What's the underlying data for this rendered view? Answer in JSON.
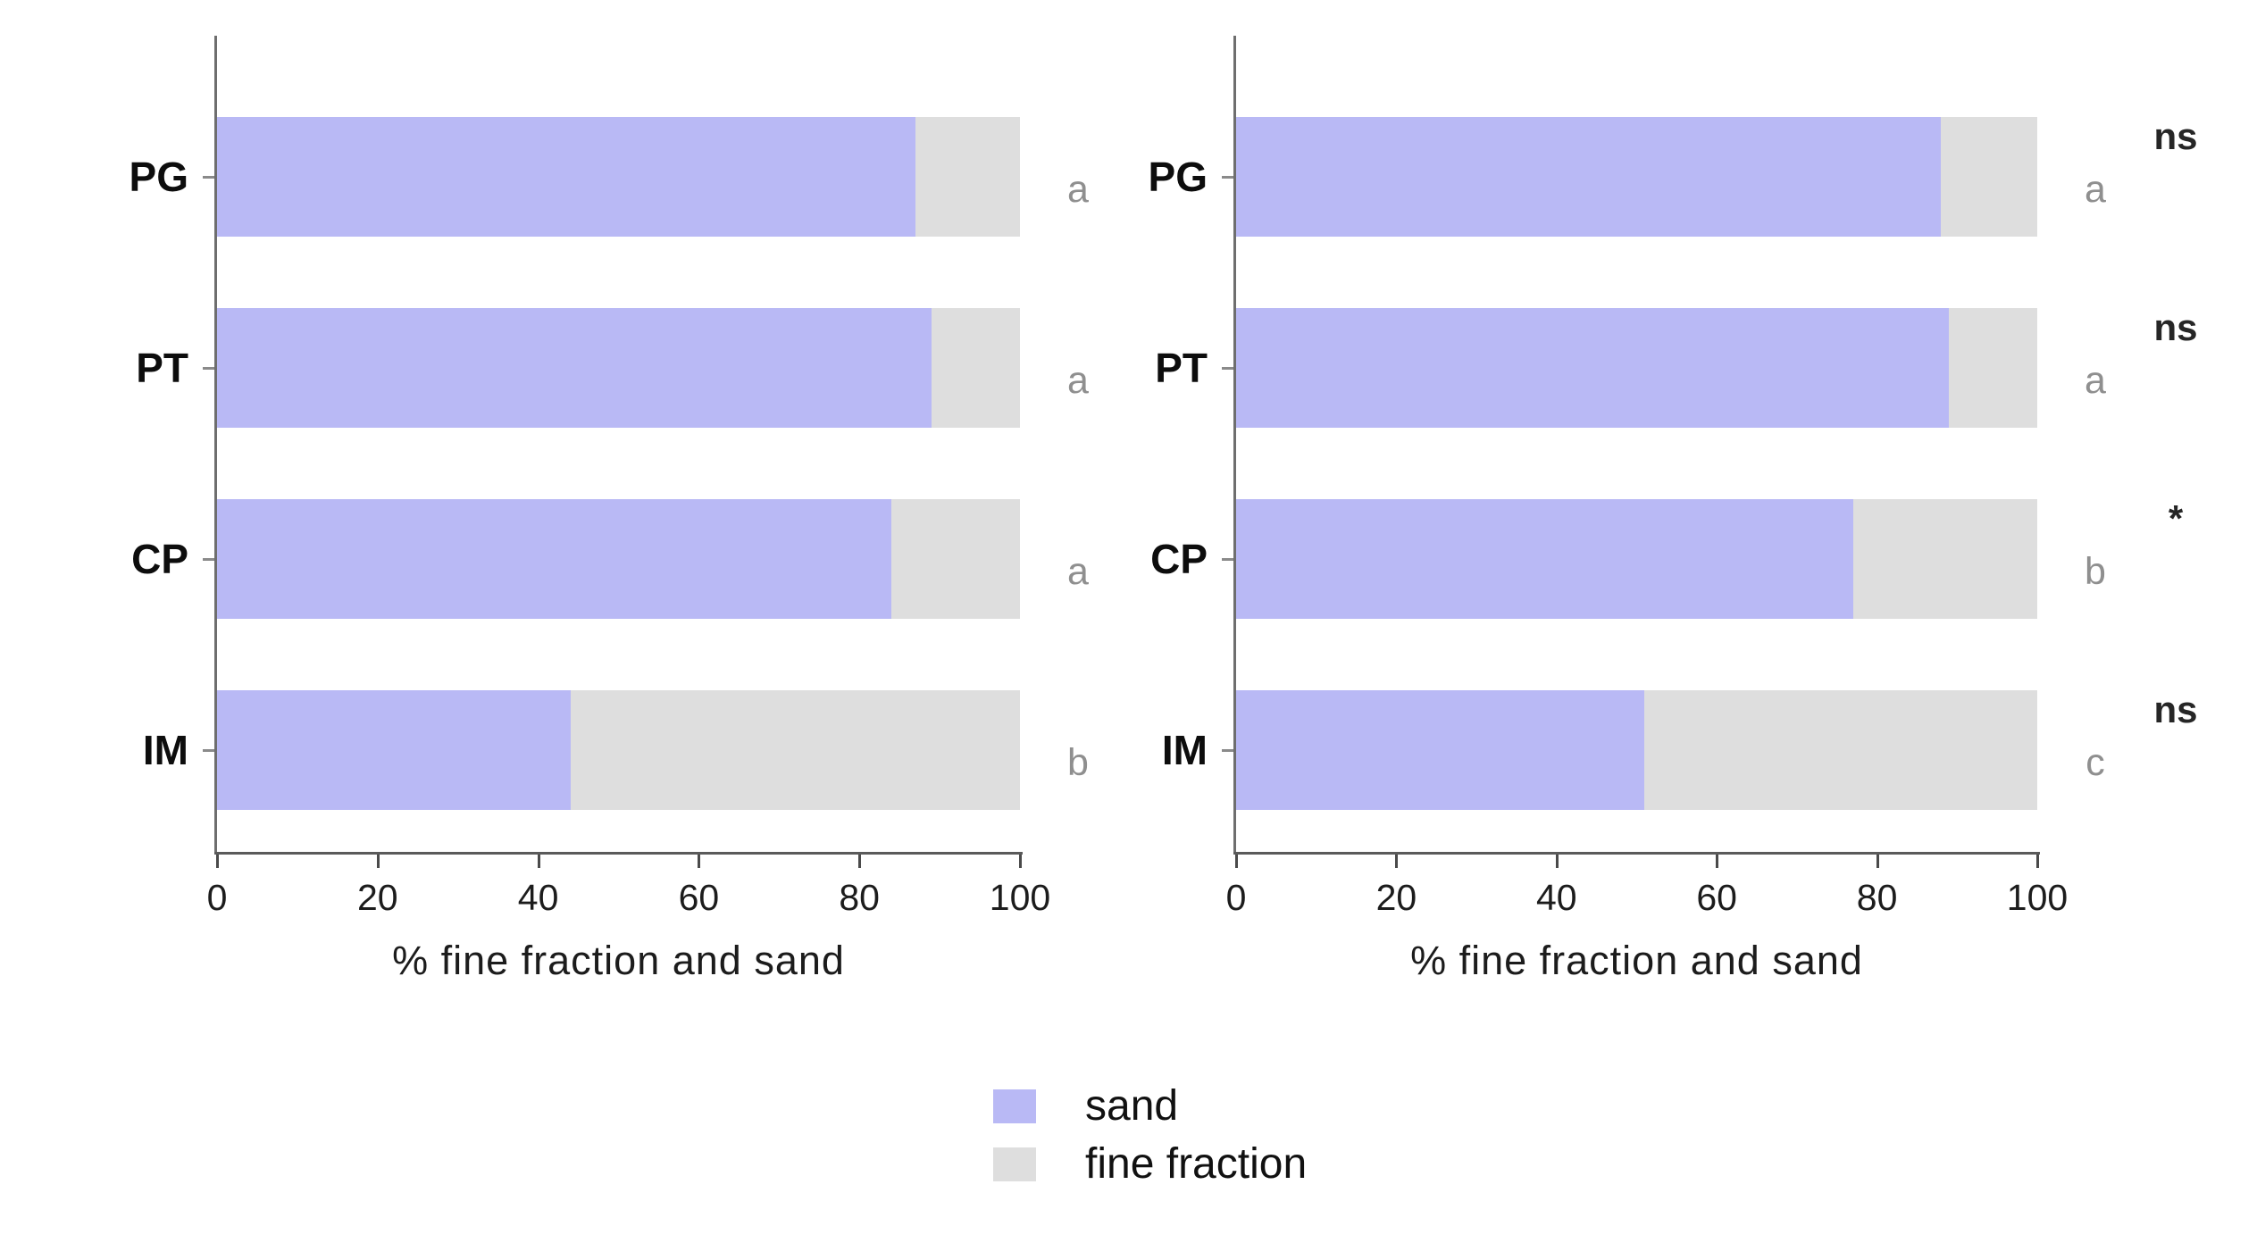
{
  "chart_data": [
    {
      "type": "bar",
      "orientation": "horizontal",
      "stacked": true,
      "title": "",
      "xlabel": "% fine fraction and sand",
      "ylabel": "",
      "xlim": [
        0,
        100
      ],
      "xticks": [
        "0",
        "20",
        "40",
        "60",
        "80",
        "100"
      ],
      "grid": false,
      "categories": [
        "PG",
        "PT",
        "CP",
        "IM"
      ],
      "series": [
        {
          "name": "sand",
          "color": "#b9b9f5",
          "values": [
            87,
            89,
            84,
            44
          ]
        },
        {
          "name": "fine fraction",
          "color": "#dedede",
          "values": [
            13,
            11,
            16,
            56
          ]
        }
      ],
      "group_letters": [
        "a",
        "a",
        "a",
        "b"
      ],
      "significance": [
        "",
        "",
        "",
        ""
      ]
    },
    {
      "type": "bar",
      "orientation": "horizontal",
      "stacked": true,
      "title": "",
      "xlabel": "% fine fraction and sand",
      "ylabel": "",
      "xlim": [
        0,
        100
      ],
      "xticks": [
        "0",
        "20",
        "40",
        "60",
        "80",
        "100"
      ],
      "grid": false,
      "categories": [
        "PG",
        "PT",
        "CP",
        "IM"
      ],
      "series": [
        {
          "name": "sand",
          "color": "#b9b9f5",
          "values": [
            88,
            89,
            77,
            51
          ]
        },
        {
          "name": "fine fraction",
          "color": "#dedede",
          "values": [
            12,
            11,
            23,
            49
          ]
        }
      ],
      "group_letters": [
        "a",
        "a",
        "b",
        "c"
      ],
      "significance": [
        "ns",
        "ns",
        "*",
        "ns"
      ]
    }
  ],
  "legend": {
    "position": "bottom-center",
    "items": [
      {
        "label": "sand",
        "color": "#b9b9f5"
      },
      {
        "label": "fine fraction",
        "color": "#dedede"
      }
    ]
  },
  "colors": {
    "background": "#ffffff",
    "axis": "#5a5a5a",
    "group_letter": "#8f8f8f",
    "significance": "#262626"
  }
}
